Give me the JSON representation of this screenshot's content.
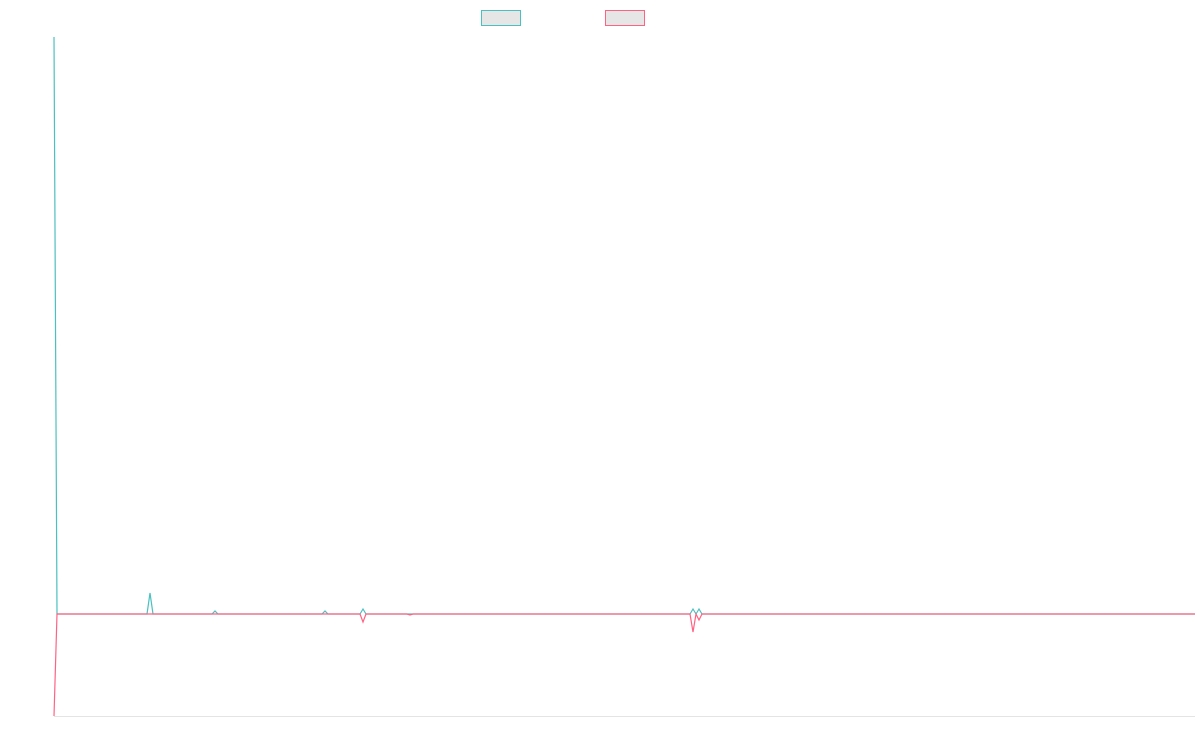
{
  "chart_data": {
    "type": "line",
    "x": [
      0,
      3,
      93,
      96,
      99,
      158,
      161,
      164,
      268,
      271,
      274,
      306,
      309,
      312,
      353,
      356,
      359,
      636,
      639,
      642,
      645,
      648,
      1141
    ],
    "series": [
      {
        "color": "#4bc0c0",
        "values": [
          577,
          0,
          0,
          21,
          0,
          0,
          3,
          0,
          0,
          3,
          0,
          0,
          5,
          0,
          0,
          0,
          0,
          0,
          5,
          0,
          5,
          0,
          0
        ]
      },
      {
        "color": "#ff6384",
        "values": [
          -102,
          0,
          0,
          0,
          0,
          0,
          0,
          0,
          0,
          0,
          0,
          0,
          -8,
          0,
          0,
          -1,
          0,
          0,
          -18,
          0,
          -6,
          0,
          0
        ]
      }
    ],
    "xlim": [
      0,
      1141
    ],
    "ylim": [
      -102,
      577
    ],
    "grid": false,
    "legend": "top"
  }
}
